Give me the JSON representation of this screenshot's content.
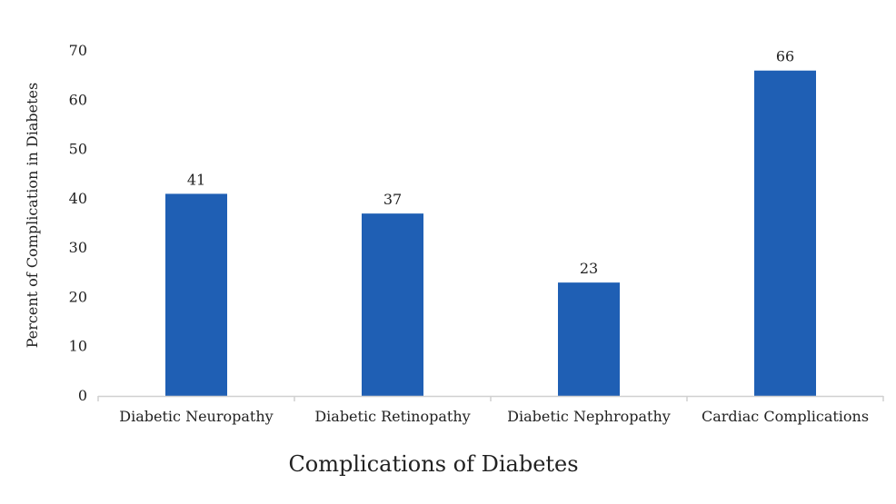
{
  "chart_data": {
    "type": "bar",
    "title": "",
    "categories": [
      "Diabetic Neuropathy",
      "Diabetic Retinopathy",
      "Diabetic Nephropathy",
      "Cardiac Complications"
    ],
    "values": [
      41,
      37,
      23,
      66
    ],
    "data_labels": [
      "41",
      "37",
      "23",
      "66"
    ],
    "xlabel": "Complications of Diabetes",
    "ylabel": "Percent of Complication in Diabetes",
    "ylim": [
      0,
      70
    ],
    "yticks": [
      0,
      10,
      20,
      30,
      40,
      50,
      60,
      70
    ],
    "ytick_labels": [
      "0",
      "10",
      "20",
      "30",
      "40",
      "50",
      "60",
      "70"
    ],
    "grid": false,
    "legend": "none",
    "bar_color": "#1f5fb4",
    "axis_color": "#d0d0d0"
  }
}
